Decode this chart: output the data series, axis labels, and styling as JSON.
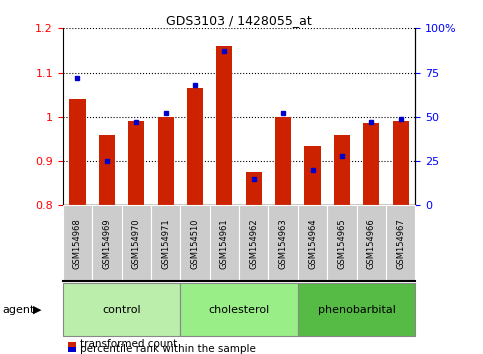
{
  "title": "GDS3103 / 1428055_at",
  "samples": [
    "GSM154968",
    "GSM154969",
    "GSM154970",
    "GSM154971",
    "GSM154510",
    "GSM154961",
    "GSM154962",
    "GSM154963",
    "GSM154964",
    "GSM154965",
    "GSM154966",
    "GSM154967"
  ],
  "transformed_count": [
    1.04,
    0.96,
    0.99,
    1.0,
    1.065,
    1.16,
    0.875,
    1.0,
    0.935,
    0.96,
    0.985,
    0.99
  ],
  "percentile_rank": [
    72,
    25,
    47,
    52,
    68,
    87,
    15,
    52,
    20,
    28,
    47,
    49
  ],
  "group_data": [
    {
      "label": "control",
      "start": 0,
      "end": 3,
      "color": "#bbeeaa"
    },
    {
      "label": "cholesterol",
      "start": 4,
      "end": 7,
      "color": "#99ee88"
    },
    {
      "label": "phenobarbital",
      "start": 8,
      "end": 11,
      "color": "#55bb44"
    }
  ],
  "ylim_left": [
    0.8,
    1.2
  ],
  "ylim_right": [
    0,
    100
  ],
  "bar_color": "#cc2200",
  "dot_color": "#0000cc",
  "bar_bottom": 0.8,
  "agent_label": "agent",
  "legend_red": "transformed count",
  "legend_blue": "percentile rank within the sample",
  "right_ticks": [
    0,
    25,
    50,
    75,
    100
  ],
  "right_tick_labels": [
    "0",
    "25",
    "50",
    "75",
    "100%"
  ],
  "left_ticks": [
    0.8,
    0.9,
    1.0,
    1.1,
    1.2
  ],
  "left_tick_labels": [
    "0.8",
    "0.9",
    "1",
    "1.1",
    "1.2"
  ]
}
